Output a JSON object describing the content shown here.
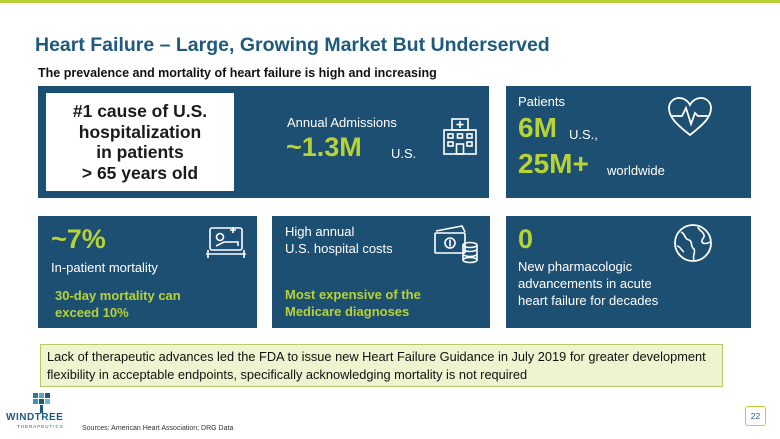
{
  "title": "Heart Failure – Large, Growing Market But Underserved",
  "subtitle": "The prevalence and mortality of heart failure is high and increasing",
  "cause_box": {
    "lines": [
      "#1 cause of U.S.",
      "hospitalization",
      "in patients",
      "> 65 years old"
    ]
  },
  "admissions": {
    "label": "Annual Admissions",
    "value": "~1.3M",
    "unit": "U.S.",
    "icon": "hospital-icon"
  },
  "patients": {
    "label": "Patients",
    "us_value": "6M",
    "us_unit": "U.S.,",
    "world_value": "25M+",
    "world_unit": "worldwide",
    "icon": "heart-pulse-icon"
  },
  "mortality": {
    "value": "~7%",
    "label": "In-patient mortality",
    "note_lines": [
      "30-day mortality can",
      "exceed 10%"
    ],
    "icon": "hospital-bed-icon"
  },
  "costs": {
    "label_lines": [
      "High annual",
      "U.S. hospital costs"
    ],
    "note_lines": [
      "Most expensive of the",
      "Medicare diagnoses"
    ],
    "icon": "money-icon"
  },
  "advances": {
    "value": "0",
    "label_lines": [
      "New pharmacologic",
      "advancements in acute",
      "heart failure for decades"
    ],
    "icon": "globe-icon"
  },
  "callout": "Lack of therapeutic advances led the FDA to issue new Heart Failure Guidance in July 2019 for greater development flexibility in acceptable endpoints, specifically acknowledging mortality is not required",
  "logo": {
    "name": "WINDTREE",
    "tagline": "THERAPEUTICS"
  },
  "sources": "Sources: American Heart Association; DRG Data",
  "page_number": "22",
  "colors": {
    "navy": "#1d4f73",
    "accent": "#b7d334",
    "title": "#1f5a7d",
    "callout_bg": "#eef4cf"
  }
}
